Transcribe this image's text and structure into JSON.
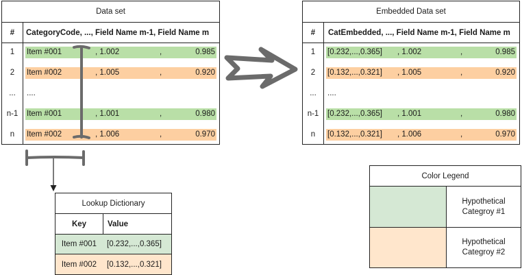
{
  "colors": {
    "green": "#b9dfa7",
    "orange": "#fdcfa1",
    "legend_green": "#d5e8d4",
    "legend_orange": "#ffe6cc",
    "border": "#222222",
    "marker": "#666666"
  },
  "dataset": {
    "title": "Data set",
    "header_index": "#",
    "header_fields": "CategoryCode, ..., Field Name m-1, Field Name m",
    "rows": [
      {
        "index": "1",
        "code": "Item #001",
        "sep": ", 1.002",
        "comma": ",",
        "last": "0.985",
        "color": "green"
      },
      {
        "index": "2",
        "code": "Item #002",
        "sep": ", 1.005",
        "comma": ",",
        "last": "0.920",
        "color": "orange"
      },
      {
        "index": "...",
        "code": "....",
        "sep": "",
        "comma": "",
        "last": "",
        "color": "none"
      },
      {
        "index": "n-1",
        "code": "Item #001",
        "sep": ", 1.001",
        "comma": ",",
        "last": "0.980",
        "color": "green"
      },
      {
        "index": "n",
        "code": "Item #002",
        "sep": ", 1.006",
        "comma": ",",
        "last": "0.970",
        "color": "orange"
      }
    ]
  },
  "embedded": {
    "title": "Embedded Data set",
    "header_index": "#",
    "header_fields": "CatEmbedded, ..., Field Name m-1, Field Name m",
    "rows": [
      {
        "index": "1",
        "code": "[0.232,...,0.365]",
        "sep": ", 1.002",
        "comma": ",",
        "last": "0.985",
        "color": "green"
      },
      {
        "index": "2",
        "code": "[0.132,...,0.321]",
        "sep": ", 1.005",
        "comma": ",",
        "last": "0.920",
        "color": "orange"
      },
      {
        "index": "...",
        "code": "....",
        "sep": "",
        "comma": "",
        "last": "",
        "color": "none"
      },
      {
        "index": "n-1",
        "code": "[0.232,...,0.365]",
        "sep": ", 1.001",
        "comma": ",",
        "last": "0.980",
        "color": "green"
      },
      {
        "index": "n",
        "code": "[0.132,...,0.321]",
        "sep": ", 1.006",
        "comma": ",",
        "last": "0.970",
        "color": "orange"
      }
    ]
  },
  "lookup": {
    "title": "Lookup Dictionary",
    "header_key": "Key",
    "header_value": "Value",
    "rows": [
      {
        "key": "Item #001",
        "value": "[0.232,...,0.365]",
        "color": "legend_green"
      },
      {
        "key": "Item #002",
        "value": "[0.132,...,0.321]",
        "color": "legend_orange"
      }
    ]
  },
  "legend": {
    "title": "Color Legend",
    "items": [
      {
        "label": "Hypothetical Categroy #1",
        "color": "legend_green"
      },
      {
        "label": "Hypothetical Categroy #2",
        "color": "legend_orange"
      }
    ]
  }
}
